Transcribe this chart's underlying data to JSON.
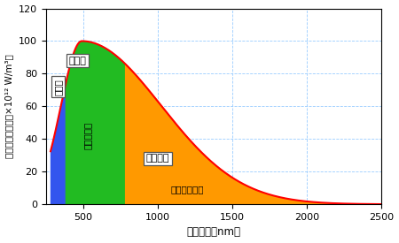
{
  "xlabel": "光の波長（nm）",
  "ylabel": "エネルギー密度（×10¹² W/m³）",
  "xlim": [
    250,
    2500
  ],
  "ylim": [
    0,
    120
  ],
  "yticks": [
    0,
    20,
    40,
    60,
    80,
    100,
    120
  ],
  "xticks": [
    500,
    1000,
    1500,
    2000,
    2500
  ],
  "uv_start": 280,
  "uv_end": 380,
  "vis_end": 780,
  "curve_start": 280,
  "curve_end": 2500,
  "peak_wavelength": 490,
  "bg_color": "#ffffff",
  "uv_color": "#3355ee",
  "vis_color": "#22bb22",
  "nir_color": "#ff9900",
  "curve_color": "#ff0000",
  "grid_color": "#99ccff",
  "label_uv": "紫外線",
  "label_vis": "可視光",
  "label_useful": "採光に有用",
  "label_nir": "近赤外線",
  "label_heat": "冷房の熱負荷"
}
